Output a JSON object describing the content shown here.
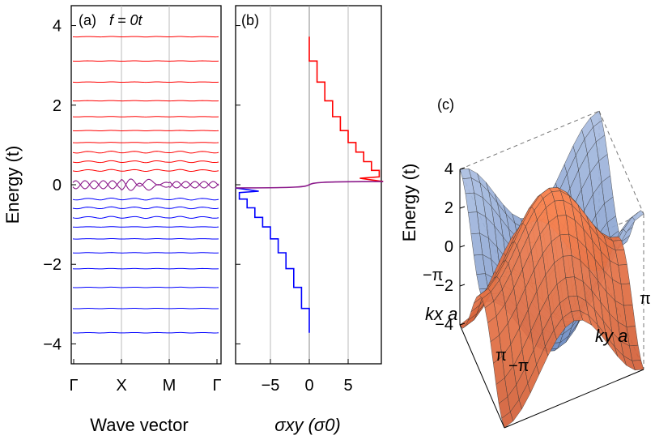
{
  "colors": {
    "electron": "#ff0000",
    "hole": "#0000ff",
    "mid": "#8b1a8b",
    "surf_top": "#e8703a",
    "surf_bottom": "#7f9fd0",
    "grid": "#bbbbbb"
  },
  "chart_data": [
    {
      "type": "line",
      "panel_label": "(a)",
      "annotation": "f = 0t",
      "xlabel": "Wave vector",
      "ylabel": "Energy (t)",
      "x_ticks": [
        "Γ",
        "X",
        "M",
        "Γ"
      ],
      "y_ticks": [
        "4",
        "2",
        "0",
        "−2",
        "−4"
      ],
      "ylim": [
        -4.5,
        4.5
      ],
      "electron_levels": [
        3.72,
        3.11,
        2.58,
        2.11,
        1.71,
        1.36,
        1.06,
        0.82,
        0.58,
        0.36
      ],
      "hole_levels": [
        -0.36,
        -0.58,
        -0.82,
        -1.06,
        -1.36,
        -1.71,
        -2.11,
        -2.58,
        -3.11,
        -3.72
      ],
      "zero_level": 0.0
    },
    {
      "type": "line",
      "panel_label": "(b)",
      "xlabel": "σxy (σ0)",
      "x_ticks": [
        "−5",
        "0",
        "5"
      ],
      "xlim": [
        -10,
        10
      ],
      "ylim": [
        -4.5,
        4.5
      ],
      "electron_branch": {
        "energies": [
          3.72,
          3.11,
          2.58,
          2.11,
          1.71,
          1.36,
          1.06,
          0.82,
          0.58,
          0.36
        ],
        "sigma": [
          0,
          1,
          2,
          3,
          4,
          5,
          6,
          7,
          8,
          9
        ]
      },
      "hole_branch": {
        "energies": [
          -3.72,
          -3.11,
          -2.58,
          -2.11,
          -1.71,
          -1.36,
          -1.06,
          -0.82,
          -0.58,
          -0.36
        ],
        "sigma": [
          0,
          -1,
          -2,
          -3,
          -4,
          -5,
          -6,
          -7,
          -8,
          -9
        ]
      },
      "central_sigma": [
        -9.5,
        9.5
      ]
    },
    {
      "type": "surface",
      "panel_label": "(c)",
      "zlabel": "Energy (t)",
      "z_ticks": [
        "4",
        "2",
        "0",
        "−2",
        "−4"
      ],
      "zlim": [
        -4,
        4
      ],
      "xlabel": "kx a",
      "ylabel": "ky a",
      "kx_ticks": [
        "−π",
        "π"
      ],
      "ky_ticks": [
        "−π",
        "π"
      ],
      "function": "E = ±2t(cos kx a + cos ky a)"
    }
  ]
}
